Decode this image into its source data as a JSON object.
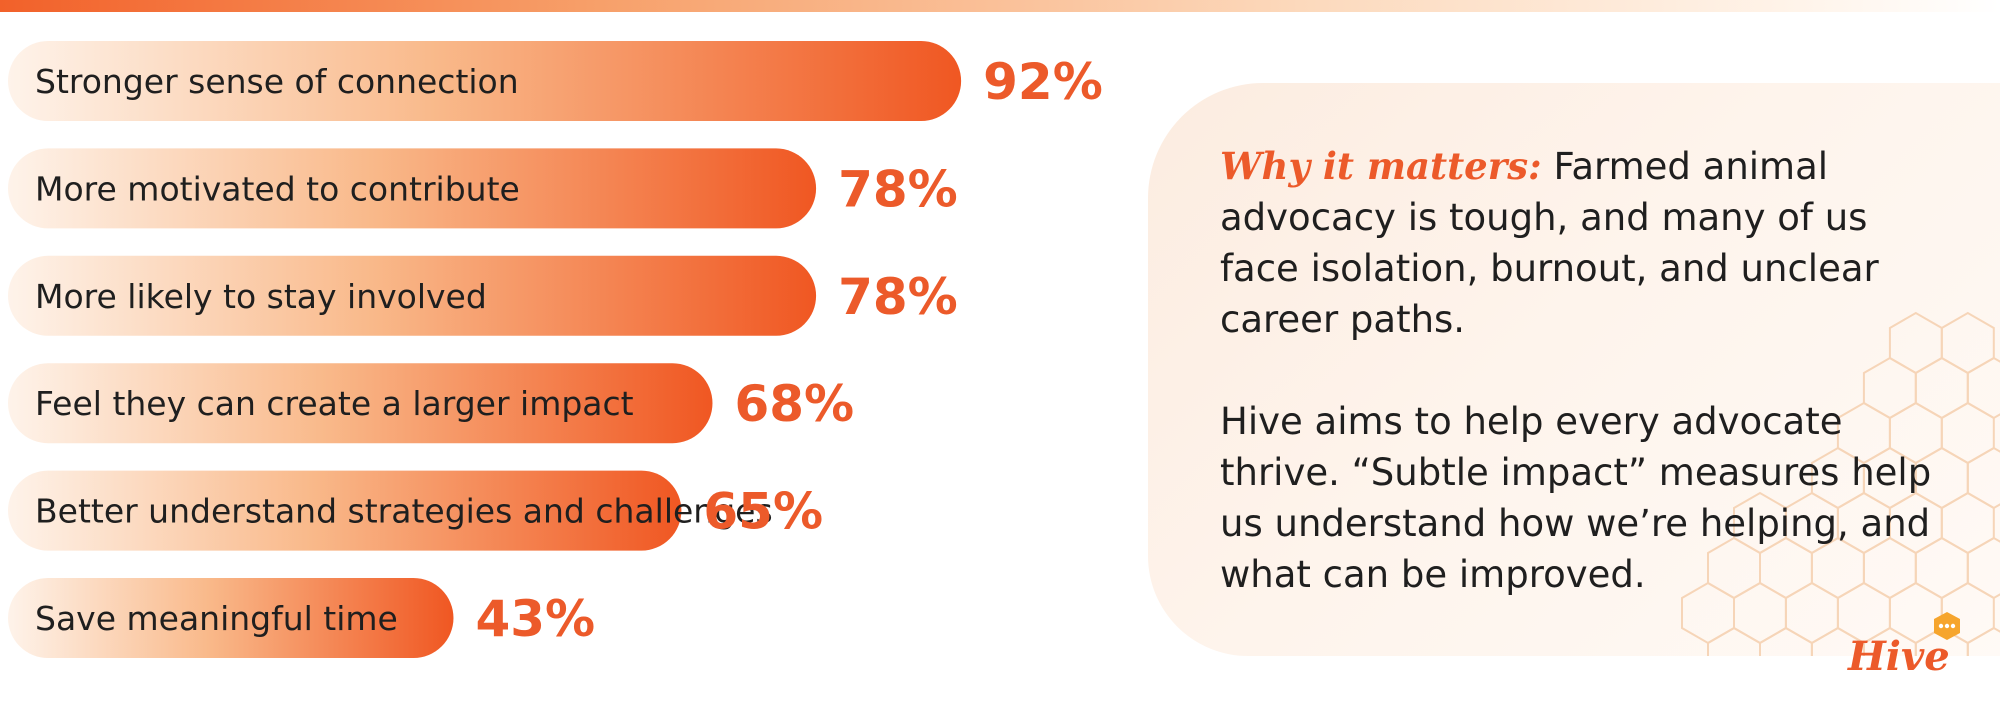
{
  "colors": {
    "accent": "#ec5a2a",
    "bar_start": "#fef3ea",
    "bar_end": "#f05722",
    "text": "#1f1f1f",
    "hive_bubble": "#f6a52d"
  },
  "chart_data": {
    "type": "bar",
    "orientation": "horizontal",
    "categories": [
      "Stronger sense of connection",
      "More motivated to contribute",
      "More likely to stay involved",
      "Feel they can create a larger impact",
      "Better understand strategies and challenges",
      "Save meaningful time"
    ],
    "values": [
      92,
      78,
      78,
      68,
      65,
      43
    ],
    "value_labels": [
      "92%",
      "78%",
      "78%",
      "68%",
      "65%",
      "43%"
    ],
    "unit": "%",
    "title": "",
    "xlabel": "",
    "ylabel": "",
    "grid": false,
    "legend": "none"
  },
  "info": {
    "lead": "Why it matters:",
    "paragraph1": "Farmed animal advocacy is tough, and many of us face isolation, burnout, and unclear career paths.",
    "paragraph2": "Hive aims to help every advocate thrive. “Subtle impact” measures help us understand how we’re helping, and what can be improved."
  },
  "logo": {
    "text": "Hive",
    "icon": "speech-bubble-icon"
  }
}
